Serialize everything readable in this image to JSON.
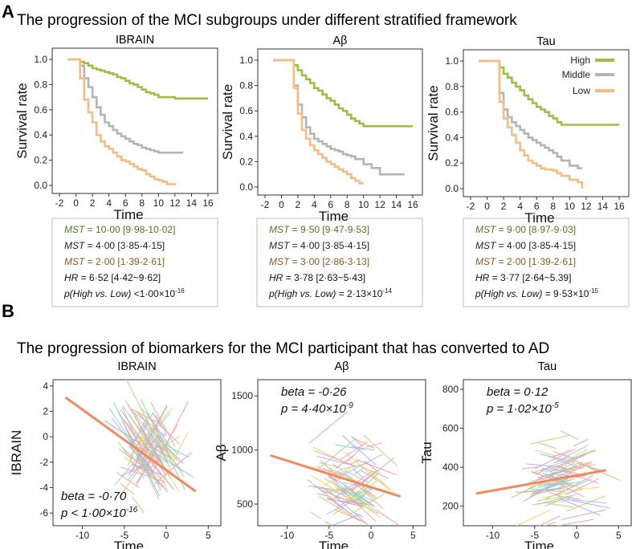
{
  "panels": {
    "A": {
      "letter": "A",
      "title": "The progression of the MCI subgroups under different stratified framework",
      "legend": [
        {
          "label": "High",
          "color": "#9ac043"
        },
        {
          "label": "Middle",
          "color": "#b4b4b4"
        },
        {
          "label": "Low",
          "color": "#f4bd86"
        }
      ]
    },
    "B": {
      "letter": "B",
      "title": "The progression of biomarkers for the MCI participant that has converted to AD"
    }
  },
  "colors": {
    "high": "#9ac043",
    "middle": "#b4b4b4",
    "low": "#f4bd86",
    "fit": "#f08a60",
    "mst_high_text": "#4d7a1f",
    "mst_low_text": "#8a5a1e"
  },
  "chart_data": [
    {
      "type": "line",
      "id": "km-ibrain",
      "title": "IBRAIN",
      "xlabel": "Time",
      "ylabel": "Survival rate",
      "xlim": [
        -2,
        16
      ],
      "ylim": [
        0,
        1.0
      ],
      "xticks": [
        "-2",
        "0",
        "2",
        "4",
        "6",
        "8",
        "10",
        "12",
        "14",
        "16"
      ],
      "yticks": [
        "0.0",
        "0.2",
        "0.4",
        "0.6",
        "0.8",
        "1.0"
      ],
      "series": [
        {
          "name": "High",
          "x": [
            -1,
            0,
            0.5,
            1,
            1.5,
            2,
            2.5,
            3,
            3.5,
            4,
            4.5,
            5,
            5.5,
            6,
            6.5,
            7,
            7.5,
            8,
            8.5,
            9,
            9.5,
            10,
            11,
            12,
            16
          ],
          "y": [
            1,
            1,
            0.98,
            0.97,
            0.95,
            0.93,
            0.92,
            0.91,
            0.9,
            0.89,
            0.88,
            0.86,
            0.85,
            0.83,
            0.81,
            0.8,
            0.78,
            0.76,
            0.74,
            0.73,
            0.72,
            0.7,
            0.7,
            0.69,
            0.69
          ]
        },
        {
          "name": "Middle",
          "x": [
            -1,
            0,
            0.5,
            1,
            1.5,
            2,
            2.5,
            3,
            3.5,
            4,
            4.5,
            5,
            5.5,
            6,
            6.5,
            7,
            7.5,
            8,
            8.5,
            9,
            9.5,
            10,
            11,
            13
          ],
          "y": [
            1,
            1,
            0.95,
            0.85,
            0.78,
            0.7,
            0.62,
            0.56,
            0.5,
            0.47,
            0.44,
            0.41,
            0.39,
            0.37,
            0.35,
            0.33,
            0.32,
            0.3,
            0.29,
            0.28,
            0.27,
            0.26,
            0.26,
            0.26
          ]
        },
        {
          "name": "Low",
          "x": [
            -1,
            0,
            0.5,
            1,
            1.5,
            2,
            2.5,
            3,
            3.5,
            4,
            4.5,
            5,
            5.5,
            6,
            6.5,
            7,
            7.5,
            8,
            8.5,
            9,
            9.5,
            10,
            10.5,
            11,
            12
          ],
          "y": [
            1,
            1,
            0.85,
            0.68,
            0.58,
            0.5,
            0.4,
            0.35,
            0.31,
            0.29,
            0.26,
            0.23,
            0.2,
            0.19,
            0.17,
            0.15,
            0.13,
            0.12,
            0.09,
            0.07,
            0.05,
            0.04,
            0.03,
            0.01,
            0
          ]
        }
      ],
      "stats": {
        "mst_high": "10·00 [9·98-10·02]",
        "mst_middle": "4·00 [3·85-4·15]",
        "mst_low": "2·00 [1·39-2·61]",
        "hr": "6·52 [4·42~9·62]",
        "p": "<1·00×10",
        "p_exp": "-16"
      }
    },
    {
      "type": "line",
      "id": "km-abeta",
      "title": "Aβ",
      "xlabel": "Time",
      "ylabel": "Survival rate",
      "xlim": [
        -2,
        16
      ],
      "ylim": [
        0,
        1.0
      ],
      "xticks": [
        "-2",
        "0",
        "2",
        "4",
        "6",
        "8",
        "10",
        "12",
        "14",
        "16"
      ],
      "yticks": [
        "0.0",
        "0.2",
        "0.4",
        "0.6",
        "0.8",
        "1.0"
      ],
      "series": [
        {
          "name": "High",
          "x": [
            -1,
            0,
            1,
            1.5,
            2,
            2.5,
            3,
            3.5,
            4,
            4.5,
            5,
            5.5,
            6,
            6.5,
            7,
            7.5,
            8,
            8.5,
            9,
            9.5,
            10,
            11,
            12,
            16
          ],
          "y": [
            1,
            1,
            1,
            0.96,
            0.92,
            0.88,
            0.85,
            0.82,
            0.78,
            0.76,
            0.73,
            0.7,
            0.68,
            0.65,
            0.62,
            0.6,
            0.57,
            0.54,
            0.52,
            0.5,
            0.48,
            0.48,
            0.48,
            0.48
          ]
        },
        {
          "name": "Middle",
          "x": [
            -1,
            0,
            1,
            1.5,
            2,
            2.5,
            3,
            3.5,
            4,
            4.5,
            5,
            5.5,
            6,
            6.5,
            7,
            7.5,
            8,
            8.5,
            9,
            10,
            11,
            12,
            13,
            15
          ],
          "y": [
            1,
            1,
            1,
            0.8,
            0.65,
            0.55,
            0.47,
            0.42,
            0.38,
            0.36,
            0.34,
            0.32,
            0.3,
            0.29,
            0.28,
            0.26,
            0.25,
            0.24,
            0.22,
            0.18,
            0.15,
            0.1,
            0.1,
            0.1
          ]
        },
        {
          "name": "Low",
          "x": [
            -1,
            0,
            1,
            1.5,
            2,
            2.5,
            3,
            3.5,
            4,
            4.5,
            5,
            5.5,
            6,
            6.5,
            7,
            7.5,
            8,
            8.5,
            9,
            9.5,
            10
          ],
          "y": [
            1,
            1,
            1,
            0.78,
            0.58,
            0.45,
            0.38,
            0.33,
            0.29,
            0.26,
            0.23,
            0.2,
            0.18,
            0.16,
            0.14,
            0.12,
            0.1,
            0.07,
            0.05,
            0.03,
            0.03
          ]
        }
      ],
      "stats": {
        "mst_high": "9·50 [9·47-9·53]",
        "mst_middle": "4·00 [3·85-4·15]",
        "mst_low": "3·00 [2·86-3·13]",
        "hr": "3·78 [2·63~5·43]",
        "p": "2·13×10",
        "p_exp": "-14"
      }
    },
    {
      "type": "line",
      "id": "km-tau",
      "title": "Tau",
      "xlabel": "Time",
      "ylabel": "Survival rate",
      "xlim": [
        -2,
        16
      ],
      "ylim": [
        0,
        1.0
      ],
      "xticks": [
        "-2",
        "0",
        "2",
        "4",
        "6",
        "8",
        "10",
        "12",
        "14",
        "16"
      ],
      "yticks": [
        "0.0",
        "0.2",
        "0.4",
        "0.6",
        "0.8",
        "1.0"
      ],
      "series": [
        {
          "name": "High",
          "x": [
            -1,
            0,
            1,
            1.5,
            2,
            2.5,
            3,
            3.5,
            4,
            4.5,
            5,
            5.5,
            6,
            6.5,
            7,
            7.5,
            8,
            8.5,
            9,
            10,
            12,
            16
          ],
          "y": [
            1,
            1,
            1,
            0.95,
            0.9,
            0.87,
            0.83,
            0.8,
            0.77,
            0.73,
            0.7,
            0.67,
            0.64,
            0.62,
            0.6,
            0.57,
            0.55,
            0.52,
            0.5,
            0.5,
            0.5,
            0.5
          ]
        },
        {
          "name": "Middle",
          "x": [
            -1,
            0,
            1,
            1.5,
            2,
            2.5,
            3,
            3.5,
            4,
            4.5,
            5,
            5.5,
            6,
            6.5,
            7,
            7.5,
            8,
            8.5,
            9,
            10,
            11,
            11.5
          ],
          "y": [
            1,
            1,
            1,
            0.75,
            0.62,
            0.56,
            0.52,
            0.49,
            0.46,
            0.43,
            0.4,
            0.38,
            0.36,
            0.34,
            0.32,
            0.3,
            0.28,
            0.25,
            0.22,
            0.18,
            0.16,
            0.16
          ]
        },
        {
          "name": "Low",
          "x": [
            -1,
            0,
            1,
            1.5,
            2,
            2.5,
            3,
            3.5,
            4,
            4.5,
            5,
            5.5,
            6,
            6.5,
            7,
            7.5,
            8,
            8.5,
            9,
            10,
            11,
            11.5
          ],
          "y": [
            1,
            1,
            1,
            0.68,
            0.55,
            0.48,
            0.42,
            0.36,
            0.3,
            0.26,
            0.22,
            0.2,
            0.18,
            0.16,
            0.15,
            0.15,
            0.14,
            0.12,
            0.1,
            0.07,
            0.05,
            0.0
          ]
        }
      ],
      "stats": {
        "mst_high": "9·00 [8·97-9·03]",
        "mst_middle": "4·00 [3·85-4·15]",
        "mst_low": "2·00 [1·39-2·61]",
        "hr": "3·77 [2·64~5.39]",
        "p": "9·53×10",
        "p_exp": "-15"
      }
    },
    {
      "type": "scatter",
      "id": "traj-ibrain",
      "title": "IBRAIN",
      "xlabel": "Time",
      "ylabel": "IBRAIN",
      "xlim": [
        -13.5,
        6.5
      ],
      "ylim": [
        -7,
        4.5
      ],
      "xticks": [
        -10,
        -5,
        0,
        5
      ],
      "yticks": [
        -6,
        -4,
        -2,
        0,
        2,
        4
      ],
      "fit": {
        "x": [
          -12,
          3.5
        ],
        "y": [
          3.1,
          -4.3
        ]
      },
      "annotation": {
        "beta": "-0·70",
        "p": "< 1·00×10",
        "p_exp": "-16"
      },
      "seed": 11,
      "center": [
        -2,
        -1.2
      ],
      "spread": [
        1.6,
        1.6
      ]
    },
    {
      "type": "scatter",
      "id": "traj-abeta",
      "title": "Aβ",
      "xlabel": "Time",
      "ylabel": "Aβ",
      "xlim": [
        -13.5,
        6.5
      ],
      "ylim": [
        300,
        1650
      ],
      "xticks": [
        -10,
        -5,
        0,
        5
      ],
      "yticks": [
        500,
        1000,
        1500
      ],
      "fit": {
        "x": [
          -12,
          3.5
        ],
        "y": [
          950,
          570
        ]
      },
      "annotation": {
        "beta": "-0·26",
        "p": "4·40×10",
        "p_exp": "-9"
      },
      "seed": 23,
      "center": [
        -2,
        680
      ],
      "spread": [
        2.2,
        200
      ]
    },
    {
      "type": "scatter",
      "id": "traj-tau",
      "title": "Tau",
      "xlabel": "Time",
      "ylabel": "Tau",
      "xlim": [
        -13.5,
        6.5
      ],
      "ylim": [
        100,
        850
      ],
      "xticks": [
        -10,
        -5,
        0,
        5
      ],
      "yticks": [
        200,
        400,
        600,
        800
      ],
      "fit": {
        "x": [
          -12,
          3.5
        ],
        "y": [
          265,
          385
        ]
      },
      "annotation": {
        "beta": "0·12",
        "p": "1·02×10",
        "p_exp": "-5"
      },
      "seed": 37,
      "center": [
        -2,
        360
      ],
      "spread": [
        2.2,
        120
      ]
    }
  ],
  "labels": {
    "mst": "MST",
    "hr": "HR",
    "p_label": "p(High vs. Low)",
    "beta": "beta",
    "p": "p"
  }
}
